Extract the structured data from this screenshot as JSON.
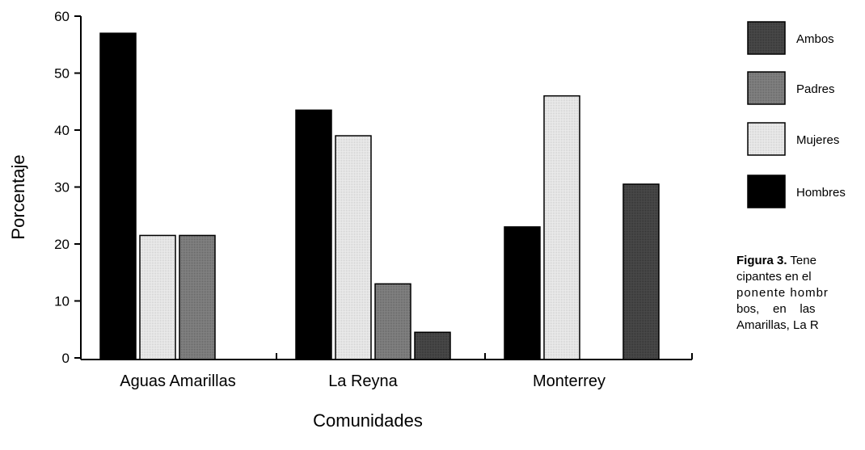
{
  "chart_data": {
    "type": "bar",
    "categories": [
      "Aguas Amarillas",
      "La Reyna",
      "Monterrey"
    ],
    "series": [
      {
        "name": "Hombres",
        "values": [
          57,
          43.5,
          23
        ]
      },
      {
        "name": "Mujeres",
        "values": [
          21.5,
          39,
          46
        ]
      },
      {
        "name": "Padres",
        "values": [
          21.5,
          13,
          0
        ]
      },
      {
        "name": "Ambos",
        "values": [
          0,
          4.5,
          30.5
        ]
      }
    ],
    "xlabel": "Comunidades",
    "ylabel": "Porcentaje",
    "ylim": [
      0,
      60
    ],
    "yticks": [
      0,
      10,
      20,
      30,
      40,
      50,
      60
    ],
    "grid": false,
    "legend_position": "right",
    "legend_order": [
      "Ambos",
      "Padres",
      "Mujeres",
      "Hombres"
    ]
  },
  "colors": {
    "Hombres": "#000000",
    "Mujeres": "#e4e4e4",
    "Padres": "#7a7a7a",
    "Ambos": "#444444"
  },
  "caption": {
    "label": "Figura 3.",
    "lines": [
      "Tene",
      "cipantes en el",
      "ponente hombr",
      "bos,    en    las",
      "Amarillas, La R"
    ]
  }
}
